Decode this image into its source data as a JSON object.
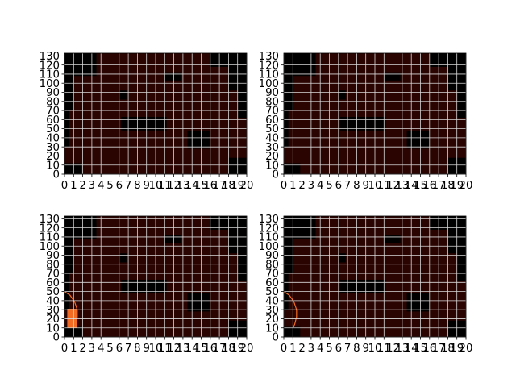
{
  "figure": {
    "background": "#ffffff"
  },
  "chart_data": [
    {
      "type": "heatmap",
      "panel": "top-left",
      "title": "",
      "xlabel": "",
      "ylabel": "",
      "xlim": [
        0,
        200
      ],
      "ylim": [
        0,
        133
      ],
      "grid": true,
      "xticks": [
        0,
        10,
        20,
        30,
        40,
        50,
        60,
        70,
        80,
        90,
        100,
        110,
        120,
        130,
        140,
        150,
        160,
        170,
        180,
        190,
        200
      ],
      "xtick_labels": [
        "0",
        "1",
        "2",
        "3",
        "4",
        "5",
        "6",
        "7",
        "8",
        "9",
        "10",
        "11",
        "12",
        "13",
        "14",
        "15",
        "16",
        "17",
        "18",
        "19",
        "20"
      ],
      "yticks": [
        0,
        10,
        20,
        30,
        40,
        50,
        60,
        70,
        80,
        90,
        100,
        110,
        120,
        130
      ],
      "ytick_labels": [
        "0",
        "10",
        "20",
        "30",
        "40",
        "50",
        "60",
        "70",
        "80",
        "90",
        "100",
        "110",
        "120",
        "130"
      ],
      "colors": {
        "free": "#2a0400",
        "obstacle": "#000000",
        "grid": "#d8d8d8",
        "path": "#f26b24"
      },
      "obstacles": [
        {
          "x": [
            0,
            35
          ],
          "y": [
            108,
            133
          ]
        },
        {
          "x": [
            0,
            10
          ],
          "y": [
            70,
            108
          ]
        },
        {
          "x": [
            0,
            5
          ],
          "y": [
            30,
            70
          ]
        },
        {
          "x": [
            0,
            18
          ],
          "y": [
            0,
            12
          ]
        },
        {
          "x": [
            160,
            200
          ],
          "y": [
            118,
            133
          ]
        },
        {
          "x": [
            180,
            200
          ],
          "y": [
            92,
            118
          ]
        },
        {
          "x": [
            190,
            200
          ],
          "y": [
            62,
            92
          ]
        },
        {
          "x": [
            180,
            200
          ],
          "y": [
            0,
            18
          ]
        },
        {
          "x": [
            60,
            68
          ],
          "y": [
            82,
            92
          ]
        },
        {
          "x": [
            110,
            128
          ],
          "y": [
            103,
            112
          ]
        },
        {
          "x": [
            62,
            112
          ],
          "y": [
            48,
            63
          ]
        },
        {
          "x": [
            135,
            160
          ],
          "y": [
            28,
            48
          ]
        }
      ],
      "path": null
    },
    {
      "type": "heatmap",
      "panel": "top-right",
      "title": "",
      "xlabel": "",
      "ylabel": "",
      "xlim": [
        0,
        200
      ],
      "ylim": [
        0,
        133
      ],
      "grid": true,
      "xticks": [
        0,
        10,
        20,
        30,
        40,
        50,
        60,
        70,
        80,
        90,
        100,
        110,
        120,
        130,
        140,
        150,
        160,
        170,
        180,
        190,
        200
      ],
      "xtick_labels": [
        "0",
        "1",
        "2",
        "3",
        "4",
        "5",
        "6",
        "7",
        "8",
        "9",
        "10",
        "11",
        "12",
        "13",
        "14",
        "15",
        "16",
        "17",
        "18",
        "19",
        "20"
      ],
      "yticks": [
        0,
        10,
        20,
        30,
        40,
        50,
        60,
        70,
        80,
        90,
        100,
        110,
        120,
        130
      ],
      "ytick_labels": [
        "0",
        "10",
        "20",
        "30",
        "40",
        "50",
        "60",
        "70",
        "80",
        "90",
        "100",
        "110",
        "120",
        "130"
      ],
      "colors": {
        "free": "#2a0400",
        "obstacle": "#000000",
        "grid": "#d8d8d8",
        "path": "#f26b24"
      },
      "obstacles": [
        {
          "x": [
            0,
            35
          ],
          "y": [
            108,
            133
          ]
        },
        {
          "x": [
            0,
            10
          ],
          "y": [
            70,
            108
          ]
        },
        {
          "x": [
            0,
            5
          ],
          "y": [
            30,
            70
          ]
        },
        {
          "x": [
            0,
            18
          ],
          "y": [
            0,
            12
          ]
        },
        {
          "x": [
            160,
            200
          ],
          "y": [
            118,
            133
          ]
        },
        {
          "x": [
            180,
            200
          ],
          "y": [
            92,
            118
          ]
        },
        {
          "x": [
            190,
            200
          ],
          "y": [
            62,
            92
          ]
        },
        {
          "x": [
            180,
            200
          ],
          "y": [
            0,
            18
          ]
        },
        {
          "x": [
            60,
            68
          ],
          "y": [
            82,
            92
          ]
        },
        {
          "x": [
            110,
            128
          ],
          "y": [
            103,
            112
          ]
        },
        {
          "x": [
            62,
            112
          ],
          "y": [
            48,
            63
          ]
        },
        {
          "x": [
            135,
            160
          ],
          "y": [
            28,
            48
          ]
        }
      ],
      "path": null
    },
    {
      "type": "heatmap",
      "panel": "bottom-left",
      "title": "",
      "xlabel": "",
      "ylabel": "",
      "xlim": [
        0,
        200
      ],
      "ylim": [
        0,
        133
      ],
      "grid": true,
      "xticks": [
        0,
        10,
        20,
        30,
        40,
        50,
        60,
        70,
        80,
        90,
        100,
        110,
        120,
        130,
        140,
        150,
        160,
        170,
        180,
        190,
        200
      ],
      "xtick_labels": [
        "0",
        "1",
        "2",
        "3",
        "4",
        "5",
        "6",
        "7",
        "8",
        "9",
        "10",
        "11",
        "12",
        "13",
        "14",
        "15",
        "16",
        "17",
        "18",
        "19",
        "20"
      ],
      "yticks": [
        0,
        10,
        20,
        30,
        40,
        50,
        60,
        70,
        80,
        90,
        100,
        110,
        120,
        130
      ],
      "ytick_labels": [
        "0",
        "10",
        "20",
        "30",
        "40",
        "50",
        "60",
        "70",
        "80",
        "90",
        "100",
        "110",
        "120",
        "130"
      ],
      "colors": {
        "free": "#2a0400",
        "obstacle": "#000000",
        "grid": "#d8d8d8",
        "path": "#f26b24"
      },
      "obstacles": [
        {
          "x": [
            0,
            35
          ],
          "y": [
            108,
            133
          ]
        },
        {
          "x": [
            0,
            10
          ],
          "y": [
            70,
            108
          ]
        },
        {
          "x": [
            0,
            5
          ],
          "y": [
            30,
            70
          ]
        },
        {
          "x": [
            0,
            18
          ],
          "y": [
            0,
            12
          ]
        },
        {
          "x": [
            160,
            200
          ],
          "y": [
            118,
            133
          ]
        },
        {
          "x": [
            180,
            200
          ],
          "y": [
            92,
            118
          ]
        },
        {
          "x": [
            190,
            200
          ],
          "y": [
            62,
            92
          ]
        },
        {
          "x": [
            180,
            200
          ],
          "y": [
            0,
            18
          ]
        },
        {
          "x": [
            60,
            68
          ],
          "y": [
            82,
            92
          ]
        },
        {
          "x": [
            110,
            128
          ],
          "y": [
            103,
            112
          ]
        },
        {
          "x": [
            62,
            112
          ],
          "y": [
            48,
            63
          ]
        },
        {
          "x": [
            135,
            160
          ],
          "y": [
            28,
            48
          ]
        }
      ],
      "path": {
        "arc": [
          [
            0,
            50
          ],
          [
            6,
            46
          ],
          [
            11,
            39
          ],
          [
            14,
            30
          ],
          [
            14,
            22
          ],
          [
            12,
            14
          ],
          [
            10,
            10
          ]
        ],
        "filled": [
          {
            "x": [
              3,
              14
            ],
            "y": [
              10,
              31
            ]
          }
        ]
      }
    },
    {
      "type": "heatmap",
      "panel": "bottom-right",
      "title": "",
      "xlabel": "",
      "ylabel": "",
      "xlim": [
        0,
        200
      ],
      "ylim": [
        0,
        133
      ],
      "grid": true,
      "xticks": [
        0,
        10,
        20,
        30,
        40,
        50,
        60,
        70,
        80,
        90,
        100,
        110,
        120,
        130,
        140,
        150,
        160,
        170,
        180,
        190,
        200
      ],
      "xtick_labels": [
        "0",
        "1",
        "2",
        "3",
        "4",
        "5",
        "6",
        "7",
        "8",
        "9",
        "10",
        "11",
        "12",
        "13",
        "14",
        "15",
        "16",
        "17",
        "18",
        "19",
        "20"
      ],
      "yticks": [
        0,
        10,
        20,
        30,
        40,
        50,
        60,
        70,
        80,
        90,
        100,
        110,
        120,
        130
      ],
      "ytick_labels": [
        "0",
        "10",
        "20",
        "30",
        "40",
        "50",
        "60",
        "70",
        "80",
        "90",
        "100",
        "110",
        "120",
        "130"
      ],
      "colors": {
        "free": "#2a0400",
        "obstacle": "#000000",
        "grid": "#d8d8d8",
        "path": "#f26b24"
      },
      "obstacles": [
        {
          "x": [
            0,
            35
          ],
          "y": [
            108,
            133
          ]
        },
        {
          "x": [
            0,
            10
          ],
          "y": [
            70,
            108
          ]
        },
        {
          "x": [
            0,
            5
          ],
          "y": [
            30,
            70
          ]
        },
        {
          "x": [
            0,
            18
          ],
          "y": [
            0,
            12
          ]
        },
        {
          "x": [
            160,
            200
          ],
          "y": [
            118,
            133
          ]
        },
        {
          "x": [
            180,
            200
          ],
          "y": [
            92,
            118
          ]
        },
        {
          "x": [
            190,
            200
          ],
          "y": [
            62,
            92
          ]
        },
        {
          "x": [
            180,
            200
          ],
          "y": [
            0,
            18
          ]
        },
        {
          "x": [
            60,
            68
          ],
          "y": [
            82,
            92
          ]
        },
        {
          "x": [
            110,
            128
          ],
          "y": [
            103,
            112
          ]
        },
        {
          "x": [
            62,
            112
          ],
          "y": [
            48,
            63
          ]
        },
        {
          "x": [
            135,
            160
          ],
          "y": [
            28,
            48
          ]
        }
      ],
      "path": {
        "arc": [
          [
            0,
            50
          ],
          [
            6,
            46
          ],
          [
            11,
            39
          ],
          [
            14,
            30
          ],
          [
            14,
            22
          ],
          [
            12,
            14
          ],
          [
            10,
            10
          ]
        ],
        "filled": []
      }
    }
  ]
}
